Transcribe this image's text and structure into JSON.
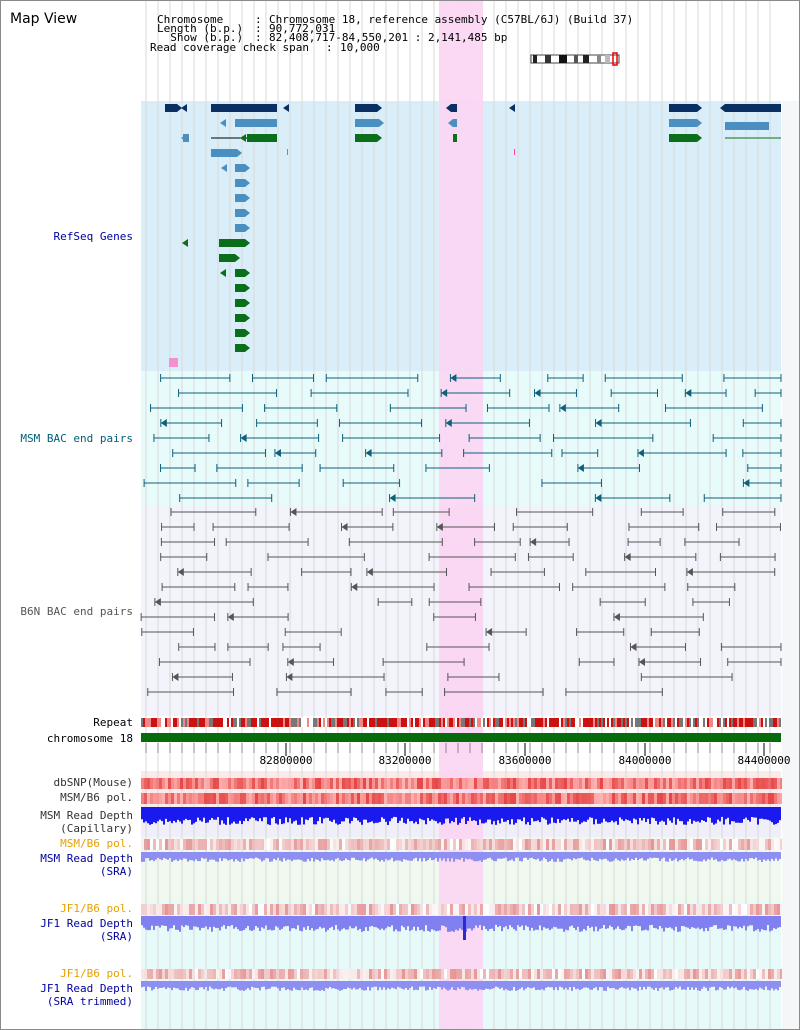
{
  "title": "Map View",
  "info": {
    "chromosome_key": "Chromosome    ",
    "chromosome_value": "Chromosome 18, reference assembly (C57BL/6J) (Build 37)",
    "length_key": "Length (b.p.) ",
    "length_value": "90,772,031",
    "show_key": "  Show (b.p.) ",
    "show_value": "82,408,717-84,550,201 : 2,141,485 bp",
    "coverage_key": "Read coverage check span ",
    "coverage_value": "10,000"
  },
  "tracks": {
    "refseq": "RefSeq Genes",
    "msm_bac": "MSM BAC end pairs",
    "b6n_bac": "B6N BAC end pairs",
    "repeat": "Repeat",
    "chromosome": "chromosome 18",
    "dbsnp": "dbSNP(Mouse)",
    "msm_b6_pol": "MSM/B6 pol.",
    "msm_depth_cap_1": "MSM Read Depth",
    "msm_depth_cap_2": "(Capillary)",
    "msm_b6_pol_2": "MSM/B6 pol.",
    "msm_depth_sra_1": "MSM Read Depth",
    "msm_depth_sra_2": "(SRA)",
    "jf1_b6_pol": "JF1/B6 pol.",
    "jf1_depth_1": "JF1 Read Depth",
    "jf1_depth_2": "(SRA)",
    "jf1_b6_pol_2": "JF1/B6 pol.",
    "jf1_trim_1": "JF1 Read Depth",
    "jf1_trim_2": "(SRA trimmed)"
  },
  "axis": {
    "ticks": [
      "82800000",
      "83200000",
      "83600000",
      "84000000",
      "84400000"
    ]
  },
  "colors": {
    "refseq_bg": "#d9eef8",
    "msm_bg": "#e7fbfb",
    "b6n_bg": "#f3f4fb",
    "highlight": "#fbd5f3",
    "gene_navy": "#0b2f63",
    "gene_blue": "#4a8fbf",
    "gene_green": "#0a6e1a",
    "bac_msm": "#0f5f7a",
    "bac_b6n": "#555555",
    "chrom_green": "#076b0b",
    "label_blue": "#0000a0",
    "label_orange": "#e8a000",
    "label_teal": "#00607a"
  }
}
